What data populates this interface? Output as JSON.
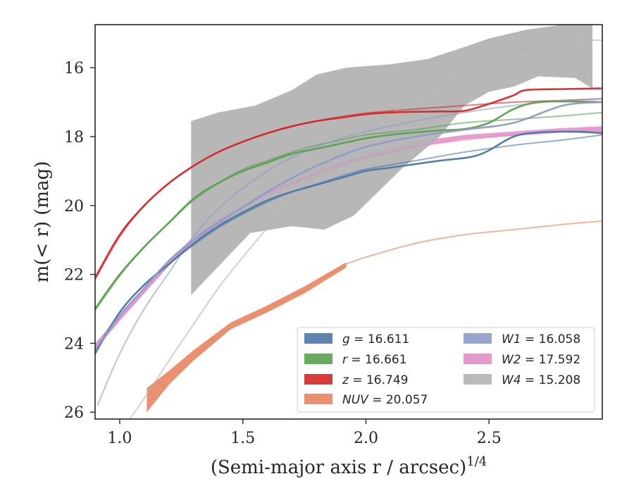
{
  "chart_data": {
    "type": "line",
    "xlabel": "(Semi-major axis r / arcsec)",
    "xlabel_sup": "1/4",
    "ylabel": "m(< r) (mag)",
    "xlim": [
      0.9,
      2.96
    ],
    "ylim": [
      26.2,
      14.75
    ],
    "y_inverted": true,
    "xticks": [
      1.0,
      1.5,
      2.0,
      2.5
    ],
    "xtick_labels": [
      "1.0",
      "1.5",
      "2.0",
      "2.5"
    ],
    "yticks": [
      16,
      18,
      20,
      22,
      24,
      26
    ],
    "ytick_labels": [
      "16",
      "18",
      "20",
      "22",
      "24",
      "26"
    ],
    "grid": false,
    "legend": {
      "placement": "lower-right",
      "columns": 2,
      "entries": [
        "g = 16.611",
        "r = 16.661",
        "z = 16.749",
        "NUV = 20.057",
        "W1 = 16.058",
        "W2 = 17.592",
        "W4 = 15.208"
      ]
    },
    "series": [
      {
        "name": "g = 16.611",
        "color": "#4c78a8",
        "data": [
          [
            0.9,
            24.3
          ],
          [
            1.0,
            23.1
          ],
          [
            1.1,
            22.3
          ],
          [
            1.2,
            21.7
          ],
          [
            1.3,
            21.1
          ],
          [
            1.4,
            20.6
          ],
          [
            1.5,
            20.2
          ],
          [
            1.6,
            19.85
          ],
          [
            1.7,
            19.6
          ],
          [
            1.8,
            19.4
          ],
          [
            1.9,
            19.2
          ],
          [
            2.0,
            19.0
          ],
          [
            2.1,
            18.9
          ],
          [
            2.2,
            18.8
          ],
          [
            2.3,
            18.7
          ],
          [
            2.4,
            18.62
          ],
          [
            2.45,
            18.55
          ],
          [
            2.5,
            18.4
          ],
          [
            2.6,
            18.0
          ],
          [
            2.7,
            17.88
          ],
          [
            2.85,
            17.86
          ],
          [
            2.96,
            17.9
          ]
        ],
        "model": [
          [
            0.9,
            24.2
          ],
          [
            1.0,
            23.1
          ],
          [
            1.1,
            22.3
          ],
          [
            1.2,
            21.7
          ],
          [
            1.3,
            21.15
          ],
          [
            1.4,
            20.65
          ],
          [
            1.5,
            20.25
          ],
          [
            1.6,
            19.9
          ],
          [
            1.7,
            19.6
          ],
          [
            1.8,
            19.38
          ],
          [
            1.9,
            19.15
          ],
          [
            2.0,
            18.95
          ],
          [
            2.2,
            18.7
          ],
          [
            2.4,
            18.45
          ],
          [
            2.6,
            18.25
          ],
          [
            2.8,
            18.1
          ],
          [
            2.96,
            17.95
          ]
        ]
      },
      {
        "name": "r = 16.661",
        "color": "#59a14f",
        "data": [
          [
            0.9,
            23.0
          ],
          [
            1.0,
            22.0
          ],
          [
            1.1,
            21.2
          ],
          [
            1.2,
            20.5
          ],
          [
            1.3,
            19.8
          ],
          [
            1.4,
            19.35
          ],
          [
            1.5,
            19.0
          ],
          [
            1.6,
            18.75
          ],
          [
            1.7,
            18.5
          ],
          [
            1.8,
            18.35
          ],
          [
            1.9,
            18.2
          ],
          [
            2.0,
            18.05
          ],
          [
            2.1,
            17.95
          ],
          [
            2.2,
            17.88
          ],
          [
            2.3,
            17.82
          ],
          [
            2.4,
            17.78
          ],
          [
            2.5,
            17.6
          ],
          [
            2.6,
            17.2
          ],
          [
            2.7,
            17.0
          ],
          [
            2.85,
            16.98
          ],
          [
            2.96,
            17.0
          ]
        ],
        "model": [
          [
            0.9,
            23.05
          ],
          [
            1.0,
            22.05
          ],
          [
            1.1,
            21.2
          ],
          [
            1.2,
            20.5
          ],
          [
            1.3,
            19.85
          ],
          [
            1.4,
            19.35
          ],
          [
            1.5,
            18.95
          ],
          [
            1.6,
            18.7
          ],
          [
            1.7,
            18.45
          ],
          [
            1.8,
            18.25
          ],
          [
            1.9,
            18.1
          ],
          [
            2.0,
            17.95
          ],
          [
            2.2,
            17.8
          ],
          [
            2.4,
            17.6
          ],
          [
            2.6,
            17.5
          ],
          [
            2.8,
            17.4
          ],
          [
            2.96,
            17.3
          ]
        ]
      },
      {
        "name": "z = 16.749",
        "color": "#d62728",
        "data": [
          [
            0.9,
            22.1
          ],
          [
            1.0,
            20.85
          ],
          [
            1.1,
            20.0
          ],
          [
            1.2,
            19.35
          ],
          [
            1.3,
            18.85
          ],
          [
            1.4,
            18.45
          ],
          [
            1.5,
            18.15
          ],
          [
            1.6,
            17.9
          ],
          [
            1.7,
            17.7
          ],
          [
            1.8,
            17.55
          ],
          [
            1.9,
            17.45
          ],
          [
            2.0,
            17.35
          ],
          [
            2.1,
            17.3
          ],
          [
            2.2,
            17.28
          ],
          [
            2.3,
            17.27
          ],
          [
            2.4,
            17.25
          ],
          [
            2.5,
            17.05
          ],
          [
            2.6,
            16.8
          ],
          [
            2.65,
            16.65
          ],
          [
            2.8,
            16.62
          ],
          [
            2.96,
            16.6
          ]
        ],
        "model": [
          [
            0.9,
            22.15
          ],
          [
            1.0,
            20.9
          ],
          [
            1.1,
            20.0
          ],
          [
            1.2,
            19.35
          ],
          [
            1.3,
            18.85
          ],
          [
            1.4,
            18.45
          ],
          [
            1.5,
            18.15
          ],
          [
            1.6,
            17.9
          ],
          [
            1.7,
            17.7
          ],
          [
            1.8,
            17.55
          ],
          [
            1.9,
            17.42
          ],
          [
            2.0,
            17.32
          ],
          [
            2.2,
            17.2
          ],
          [
            2.4,
            17.1
          ],
          [
            2.6,
            17.0
          ],
          [
            2.8,
            16.95
          ],
          [
            2.96,
            16.9
          ]
        ]
      },
      {
        "name": "NUV = 20.057",
        "color": "#e8845f",
        "band_upper": [
          [
            1.11,
            25.3
          ],
          [
            1.2,
            24.8
          ],
          [
            1.3,
            24.2
          ],
          [
            1.45,
            23.4
          ],
          [
            1.6,
            22.9
          ],
          [
            1.75,
            22.35
          ],
          [
            1.92,
            21.65
          ]
        ],
        "band_lower": [
          [
            1.11,
            26.0
          ],
          [
            1.2,
            25.2
          ],
          [
            1.3,
            24.5
          ],
          [
            1.45,
            23.6
          ],
          [
            1.6,
            23.1
          ],
          [
            1.75,
            22.55
          ],
          [
            1.92,
            21.8
          ]
        ],
        "model": [
          [
            1.92,
            21.7
          ],
          [
            2.0,
            21.5
          ],
          [
            2.2,
            21.1
          ],
          [
            2.4,
            20.85
          ],
          [
            2.6,
            20.7
          ],
          [
            2.8,
            20.55
          ],
          [
            2.96,
            20.45
          ]
        ]
      },
      {
        "name": "W1 = 16.058",
        "color": "#8d9bc9",
        "data": [
          [
            0.9,
            24.2
          ],
          [
            1.0,
            23.2
          ],
          [
            1.1,
            22.4
          ],
          [
            1.2,
            21.6
          ],
          [
            1.3,
            21.0
          ],
          [
            1.4,
            20.5
          ],
          [
            1.5,
            20.05
          ],
          [
            1.6,
            19.6
          ],
          [
            1.7,
            19.2
          ],
          [
            1.8,
            18.85
          ],
          [
            1.9,
            18.55
          ],
          [
            2.0,
            18.3
          ],
          [
            2.2,
            18.0
          ],
          [
            2.4,
            17.8
          ],
          [
            2.6,
            17.6
          ],
          [
            2.8,
            17.1
          ],
          [
            2.96,
            17.0
          ]
        ],
        "model": [
          [
            0.91,
            25.8
          ],
          [
            1.0,
            24.3
          ],
          [
            1.1,
            23.0
          ],
          [
            1.2,
            21.95
          ],
          [
            1.3,
            20.9
          ],
          [
            1.4,
            20.1
          ],
          [
            1.5,
            19.5
          ],
          [
            1.6,
            19.0
          ],
          [
            1.7,
            18.6
          ],
          [
            1.8,
            18.3
          ],
          [
            1.9,
            18.05
          ],
          [
            2.0,
            17.85
          ],
          [
            2.2,
            17.55
          ],
          [
            2.4,
            17.3
          ],
          [
            2.6,
            17.1
          ],
          [
            2.8,
            16.95
          ],
          [
            2.96,
            16.9
          ]
        ]
      },
      {
        "name": "W2 = 17.592",
        "color": "#e08ec5",
        "band_upper": [
          [
            0.9,
            24.0
          ],
          [
            1.0,
            23.2
          ],
          [
            1.1,
            22.4
          ],
          [
            1.2,
            21.6
          ],
          [
            1.3,
            20.9
          ],
          [
            1.4,
            20.4
          ],
          [
            1.5,
            20.0
          ],
          [
            1.6,
            19.6
          ],
          [
            1.7,
            19.3
          ],
          [
            1.8,
            19.0
          ],
          [
            1.9,
            18.75
          ],
          [
            2.0,
            18.5
          ],
          [
            2.2,
            18.15
          ],
          [
            2.4,
            17.95
          ],
          [
            2.6,
            17.85
          ],
          [
            2.8,
            17.75
          ],
          [
            2.96,
            17.7
          ]
        ],
        "band_lower": [
          [
            0.9,
            24.2
          ],
          [
            1.0,
            23.35
          ],
          [
            1.1,
            22.55
          ],
          [
            1.2,
            21.75
          ],
          [
            1.3,
            21.05
          ],
          [
            1.4,
            20.55
          ],
          [
            1.5,
            20.15
          ],
          [
            1.6,
            19.75
          ],
          [
            1.7,
            19.45
          ],
          [
            1.8,
            19.15
          ],
          [
            1.9,
            18.9
          ],
          [
            2.0,
            18.65
          ],
          [
            2.2,
            18.3
          ],
          [
            2.4,
            18.08
          ],
          [
            2.6,
            17.98
          ],
          [
            2.8,
            17.88
          ],
          [
            2.96,
            17.9
          ]
        ],
        "model": [
          [
            0.9,
            24.1
          ],
          [
            1.0,
            23.3
          ],
          [
            1.1,
            22.5
          ],
          [
            1.2,
            21.7
          ],
          [
            1.3,
            21.0
          ],
          [
            1.4,
            20.45
          ],
          [
            1.5,
            20.05
          ],
          [
            1.6,
            19.65
          ],
          [
            1.7,
            19.35
          ],
          [
            1.8,
            19.05
          ],
          [
            1.9,
            18.8
          ],
          [
            2.0,
            18.6
          ],
          [
            2.2,
            18.3
          ],
          [
            2.4,
            18.1
          ],
          [
            2.6,
            17.95
          ],
          [
            2.8,
            17.85
          ],
          [
            2.96,
            17.8
          ]
        ]
      },
      {
        "name": "W4 = 15.208",
        "color": "#b3b3b3",
        "band_upper": [
          [
            1.29,
            17.55
          ],
          [
            1.4,
            17.3
          ],
          [
            1.55,
            17.1
          ],
          [
            1.7,
            16.65
          ],
          [
            1.8,
            16.2
          ],
          [
            1.92,
            16.0
          ],
          [
            2.1,
            15.9
          ],
          [
            2.25,
            15.75
          ],
          [
            2.4,
            15.4
          ],
          [
            2.5,
            15.15
          ],
          [
            2.65,
            14.9
          ],
          [
            2.8,
            14.75
          ],
          [
            2.92,
            14.75
          ]
        ],
        "band_lower": [
          [
            1.29,
            22.6
          ],
          [
            1.45,
            21.4
          ],
          [
            1.53,
            20.8
          ],
          [
            1.7,
            20.6
          ],
          [
            1.83,
            20.7
          ],
          [
            1.95,
            20.3
          ],
          [
            2.05,
            19.6
          ],
          [
            2.15,
            18.9
          ],
          [
            2.3,
            18.0
          ],
          [
            2.4,
            17.1
          ],
          [
            2.5,
            16.7
          ],
          [
            2.6,
            16.55
          ],
          [
            2.7,
            16.25
          ],
          [
            2.85,
            16.3
          ],
          [
            2.92,
            16.6
          ],
          [
            2.92,
            14.75
          ]
        ],
        "model": [
          [
            1.03,
            26.3
          ],
          [
            1.1,
            25.6
          ],
          [
            1.2,
            24.5
          ],
          [
            1.3,
            23.45
          ],
          [
            1.4,
            22.4
          ],
          [
            1.5,
            21.5
          ],
          [
            1.6,
            20.65
          ],
          [
            1.7,
            19.85
          ],
          [
            1.8,
            19.1
          ],
          [
            1.9,
            18.45
          ],
          [
            2.0,
            17.85
          ],
          [
            2.2,
            16.9
          ],
          [
            2.4,
            16.2
          ],
          [
            2.6,
            15.6
          ],
          [
            2.75,
            15.25
          ],
          [
            2.96,
            15.2
          ]
        ]
      }
    ]
  }
}
